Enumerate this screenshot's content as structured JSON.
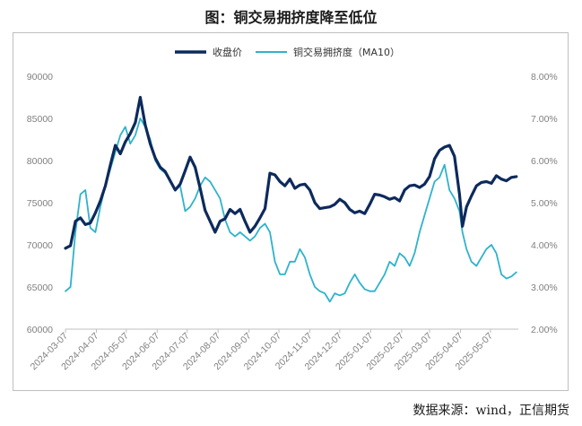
{
  "chart_data": {
    "type": "line",
    "title": "图：铜交易拥挤度降至低位",
    "source": "数据来源：wind，正信期货",
    "y_left": {
      "ticks": [
        "60000",
        "65000",
        "70000",
        "75000",
        "80000",
        "85000",
        "90000"
      ],
      "range": [
        60000,
        90000
      ]
    },
    "y_right": {
      "ticks": [
        "2.00%",
        "3.00%",
        "4.00%",
        "5.00%",
        "6.00%",
        "7.00%",
        "8.00%"
      ],
      "range": [
        2.0,
        8.0
      ]
    },
    "x_ticks": [
      "2024-03-07",
      "2024-04-07",
      "2024-05-07",
      "2024-06-07",
      "2024-07-07",
      "2024-08-07",
      "2024-09-07",
      "2024-10-07",
      "2024-11-07",
      "2024-12-07",
      "2025-01-07",
      "2025-02-07",
      "2025-03-07",
      "2025-04-07",
      "2025-05-07"
    ],
    "series": [
      {
        "name": "收盘价",
        "axis": "left",
        "color": "#0d2a5c",
        "points": [
          [
            "2024-03-07",
            69600
          ],
          [
            "2024-03-12",
            69900
          ],
          [
            "2024-03-17",
            72800
          ],
          [
            "2024-03-22",
            73200
          ],
          [
            "2024-03-27",
            72400
          ],
          [
            "2024-04-01",
            72600
          ],
          [
            "2024-04-06",
            73800
          ],
          [
            "2024-04-11",
            75200
          ],
          [
            "2024-04-16",
            77000
          ],
          [
            "2024-04-21",
            79500
          ],
          [
            "2024-04-26",
            81800
          ],
          [
            "2024-05-01",
            80800
          ],
          [
            "2024-05-06",
            82200
          ],
          [
            "2024-05-11",
            83200
          ],
          [
            "2024-05-16",
            84500
          ],
          [
            "2024-05-21",
            87500
          ],
          [
            "2024-05-26",
            84200
          ],
          [
            "2024-05-31",
            82000
          ],
          [
            "2024-06-05",
            80300
          ],
          [
            "2024-06-10",
            79200
          ],
          [
            "2024-06-15",
            78700
          ],
          [
            "2024-06-20",
            77600
          ],
          [
            "2024-06-25",
            76500
          ],
          [
            "2024-06-30",
            77200
          ],
          [
            "2024-07-05",
            78800
          ],
          [
            "2024-07-10",
            80400
          ],
          [
            "2024-07-15",
            79200
          ],
          [
            "2024-07-20",
            76700
          ],
          [
            "2024-07-25",
            74100
          ],
          [
            "2024-07-30",
            72800
          ],
          [
            "2024-08-04",
            71500
          ],
          [
            "2024-08-09",
            72800
          ],
          [
            "2024-08-14",
            73100
          ],
          [
            "2024-08-19",
            74200
          ],
          [
            "2024-08-24",
            73700
          ],
          [
            "2024-08-29",
            74200
          ],
          [
            "2024-09-03",
            72800
          ],
          [
            "2024-09-08",
            71500
          ],
          [
            "2024-09-13",
            72200
          ],
          [
            "2024-09-18",
            73200
          ],
          [
            "2024-09-23",
            74300
          ],
          [
            "2024-09-28",
            78500
          ],
          [
            "2024-10-03",
            78300
          ],
          [
            "2024-10-08",
            77500
          ],
          [
            "2024-10-13",
            77000
          ],
          [
            "2024-10-18",
            77800
          ],
          [
            "2024-10-23",
            76700
          ],
          [
            "2024-10-28",
            77100
          ],
          [
            "2024-11-02",
            77200
          ],
          [
            "2024-11-07",
            76500
          ],
          [
            "2024-11-12",
            75000
          ],
          [
            "2024-11-17",
            74300
          ],
          [
            "2024-11-22",
            74400
          ],
          [
            "2024-11-27",
            74500
          ],
          [
            "2024-12-02",
            74800
          ],
          [
            "2024-12-07",
            75400
          ],
          [
            "2024-12-12",
            75000
          ],
          [
            "2024-12-17",
            74200
          ],
          [
            "2024-12-22",
            73800
          ],
          [
            "2024-12-27",
            74000
          ],
          [
            "2025-01-01",
            73700
          ],
          [
            "2025-01-06",
            74800
          ],
          [
            "2025-01-11",
            76000
          ],
          [
            "2025-01-16",
            75900
          ],
          [
            "2025-01-21",
            75700
          ],
          [
            "2025-01-26",
            75400
          ],
          [
            "2025-01-31",
            75600
          ],
          [
            "2025-02-05",
            75200
          ],
          [
            "2025-02-10",
            76500
          ],
          [
            "2025-02-15",
            77000
          ],
          [
            "2025-02-20",
            77100
          ],
          [
            "2025-02-25",
            76800
          ],
          [
            "2025-03-02",
            77200
          ],
          [
            "2025-03-07",
            78100
          ],
          [
            "2025-03-12",
            80200
          ],
          [
            "2025-03-17",
            81200
          ],
          [
            "2025-03-22",
            81600
          ],
          [
            "2025-03-27",
            81800
          ],
          [
            "2025-04-01",
            80500
          ],
          [
            "2025-04-06",
            76000
          ],
          [
            "2025-04-09",
            72200
          ],
          [
            "2025-04-13",
            74500
          ],
          [
            "2025-04-18",
            75800
          ],
          [
            "2025-04-23",
            77000
          ],
          [
            "2025-04-28",
            77400
          ],
          [
            "2025-05-03",
            77500
          ],
          [
            "2025-05-08",
            77300
          ],
          [
            "2025-05-13",
            78200
          ],
          [
            "2025-05-18",
            77800
          ],
          [
            "2025-05-23",
            77600
          ],
          [
            "2025-05-28",
            78000
          ],
          [
            "2025-06-02",
            78100
          ]
        ]
      },
      {
        "name": "铜交易拥挤度（MA10）",
        "axis": "right",
        "color": "#2fb2cc",
        "points": [
          [
            "2024-03-07",
            2.9
          ],
          [
            "2024-03-12",
            3.0
          ],
          [
            "2024-03-17",
            4.3
          ],
          [
            "2024-03-22",
            5.2
          ],
          [
            "2024-03-27",
            5.3
          ],
          [
            "2024-04-01",
            4.4
          ],
          [
            "2024-04-06",
            4.3
          ],
          [
            "2024-04-11",
            4.9
          ],
          [
            "2024-04-16",
            5.4
          ],
          [
            "2024-04-21",
            5.8
          ],
          [
            "2024-04-26",
            6.2
          ],
          [
            "2024-05-01",
            6.6
          ],
          [
            "2024-05-06",
            6.8
          ],
          [
            "2024-05-11",
            6.4
          ],
          [
            "2024-05-16",
            6.6
          ],
          [
            "2024-05-21",
            7.0
          ],
          [
            "2024-05-26",
            6.8
          ],
          [
            "2024-05-31",
            6.5
          ],
          [
            "2024-06-05",
            6.0
          ],
          [
            "2024-06-10",
            5.8
          ],
          [
            "2024-06-15",
            5.7
          ],
          [
            "2024-06-20",
            5.5
          ],
          [
            "2024-06-25",
            5.3
          ],
          [
            "2024-06-30",
            5.4
          ],
          [
            "2024-07-05",
            4.8
          ],
          [
            "2024-07-10",
            4.9
          ],
          [
            "2024-07-15",
            5.1
          ],
          [
            "2024-07-20",
            5.4
          ],
          [
            "2024-07-25",
            5.6
          ],
          [
            "2024-07-30",
            5.5
          ],
          [
            "2024-08-04",
            5.3
          ],
          [
            "2024-08-09",
            5.1
          ],
          [
            "2024-08-14",
            4.6
          ],
          [
            "2024-08-19",
            4.3
          ],
          [
            "2024-08-24",
            4.2
          ],
          [
            "2024-08-29",
            4.3
          ],
          [
            "2024-09-03",
            4.2
          ],
          [
            "2024-09-08",
            4.1
          ],
          [
            "2024-09-13",
            4.2
          ],
          [
            "2024-09-18",
            4.4
          ],
          [
            "2024-09-23",
            4.5
          ],
          [
            "2024-09-28",
            4.3
          ],
          [
            "2024-10-03",
            3.6
          ],
          [
            "2024-10-08",
            3.3
          ],
          [
            "2024-10-13",
            3.3
          ],
          [
            "2024-10-18",
            3.6
          ],
          [
            "2024-10-23",
            3.6
          ],
          [
            "2024-10-28",
            3.9
          ],
          [
            "2024-11-02",
            3.7
          ],
          [
            "2024-11-07",
            3.3
          ],
          [
            "2024-11-12",
            3.0
          ],
          [
            "2024-11-17",
            2.9
          ],
          [
            "2024-11-22",
            2.85
          ],
          [
            "2024-11-27",
            2.65
          ],
          [
            "2024-12-02",
            2.85
          ],
          [
            "2024-12-07",
            2.8
          ],
          [
            "2024-12-12",
            2.85
          ],
          [
            "2024-12-17",
            3.1
          ],
          [
            "2024-12-22",
            3.3
          ],
          [
            "2024-12-27",
            3.1
          ],
          [
            "2025-01-01",
            2.95
          ],
          [
            "2025-01-06",
            2.9
          ],
          [
            "2025-01-11",
            2.9
          ],
          [
            "2025-01-16",
            3.1
          ],
          [
            "2025-01-21",
            3.3
          ],
          [
            "2025-01-26",
            3.6
          ],
          [
            "2025-01-31",
            3.5
          ],
          [
            "2025-02-05",
            3.8
          ],
          [
            "2025-02-10",
            3.7
          ],
          [
            "2025-02-15",
            3.5
          ],
          [
            "2025-02-20",
            3.8
          ],
          [
            "2025-02-25",
            4.3
          ],
          [
            "2025-03-02",
            4.7
          ],
          [
            "2025-03-07",
            5.1
          ],
          [
            "2025-03-12",
            5.5
          ],
          [
            "2025-03-17",
            5.6
          ],
          [
            "2025-03-22",
            5.9
          ],
          [
            "2025-03-27",
            5.3
          ],
          [
            "2025-04-01",
            5.1
          ],
          [
            "2025-04-06",
            4.8
          ],
          [
            "2025-04-09",
            4.3
          ],
          [
            "2025-04-13",
            3.9
          ],
          [
            "2025-04-18",
            3.6
          ],
          [
            "2025-04-23",
            3.5
          ],
          [
            "2025-04-28",
            3.7
          ],
          [
            "2025-05-03",
            3.9
          ],
          [
            "2025-05-08",
            4.0
          ],
          [
            "2025-05-13",
            3.8
          ],
          [
            "2025-05-18",
            3.3
          ],
          [
            "2025-05-23",
            3.2
          ],
          [
            "2025-05-28",
            3.25
          ],
          [
            "2025-06-02",
            3.35
          ]
        ]
      }
    ]
  }
}
